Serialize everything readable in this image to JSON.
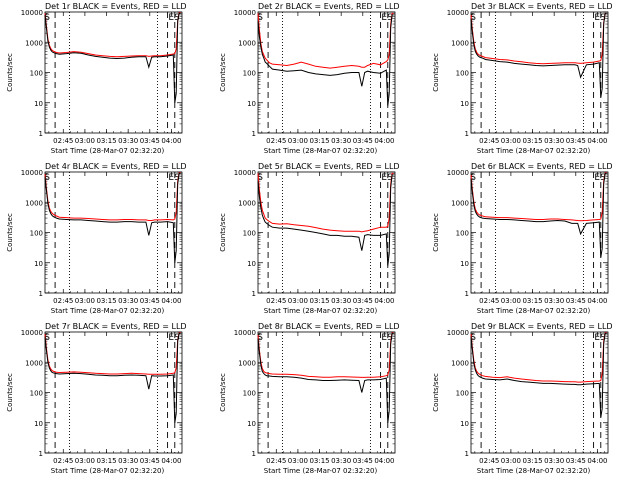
{
  "chart_data": {
    "type": "line",
    "yscale": "log",
    "ylim": [
      1,
      10000
    ],
    "xlim": [
      0,
      95
    ],
    "xtick_labels": [
      "02:45",
      "03:00",
      "03:15",
      "03:30",
      "03:45",
      "04:00"
    ],
    "xtick_minutes": [
      12.67,
      27.67,
      42.67,
      57.67,
      72.67,
      87.67
    ],
    "ytick_labels": [
      "1",
      "10",
      "100",
      "1000",
      "10000"
    ],
    "ytick_values": [
      1,
      10,
      100,
      1000,
      10000
    ],
    "ylabel": "Counts/sec",
    "xlabel": "Start Time (28-Mar-07 02:32:20)",
    "markers": [
      {
        "label": "S",
        "minute": 1.5
      },
      {
        "label": "E",
        "minute": 87.5
      },
      {
        "label": "S",
        "minute": 91.5
      }
    ],
    "dashed_lines_min": [
      7,
      85,
      90
    ],
    "dotted_lines_min": [
      17,
      78
    ],
    "legend_colors": {
      "events": "#000000",
      "lld": "#ff0000"
    },
    "sample_minutes": [
      0,
      1,
      2,
      3,
      4,
      5,
      6,
      8,
      10,
      15,
      20,
      25,
      30,
      35,
      40,
      45,
      50,
      55,
      60,
      65,
      70,
      72,
      74,
      76,
      80,
      85,
      89,
      90,
      91,
      92,
      93,
      94
    ],
    "panels": [
      {
        "title": "Det 1r BLACK = Events, RED = LLD",
        "series": [
          {
            "name": "Events",
            "color": "#000000",
            "values": [
              8000,
              3000,
              1100,
              700,
              550,
              480,
              450,
              420,
              400,
              420,
              450,
              430,
              380,
              340,
              320,
              300,
              290,
              300,
              320,
              330,
              330,
              150,
              320,
              330,
              330,
              350,
              380,
              10,
              20,
              5000,
              9000,
              9000
            ]
          },
          {
            "name": "LLD",
            "color": "#ff0000",
            "values": [
              9000,
              3500,
              1300,
              800,
              620,
              540,
              500,
              460,
              440,
              460,
              490,
              470,
              420,
              380,
              360,
              340,
              330,
              340,
              350,
              360,
              360,
              340,
              350,
              360,
              360,
              380,
              410,
              420,
              600,
              5000,
              9500,
              9500
            ]
          }
        ]
      },
      {
        "title": "Det 2r BLACK = Events, RED = LLD",
        "series": [
          {
            "name": "Events",
            "color": "#000000",
            "values": [
              5000,
              1500,
              700,
              400,
              300,
              220,
              200,
              160,
              130,
              120,
              110,
              115,
              120,
              100,
              90,
              85,
              80,
              85,
              95,
              100,
              100,
              35,
              100,
              110,
              100,
              95,
              120,
              8,
              20,
              3000,
              8000,
              8000
            ]
          },
          {
            "name": "LLD",
            "color": "#ff0000",
            "values": [
              9000,
              2500,
              900,
              500,
              380,
              300,
              260,
              210,
              190,
              180,
              170,
              190,
              220,
              190,
              160,
              150,
              140,
              150,
              160,
              170,
              160,
              150,
              150,
              170,
              200,
              180,
              230,
              260,
              400,
              4000,
              9000,
              9000
            ]
          }
        ]
      },
      {
        "title": "Det 3r BLACK = Events, RED = LLD",
        "series": [
          {
            "name": "Events",
            "color": "#000000",
            "values": [
              6000,
              2000,
              800,
              500,
              400,
              350,
              320,
              300,
              270,
              250,
              230,
              220,
              200,
              190,
              180,
              170,
              165,
              170,
              175,
              180,
              180,
              180,
              170,
              70,
              180,
              190,
              210,
              15,
              30,
              4000,
              9000,
              9000
            ]
          },
          {
            "name": "LLD",
            "color": "#ff0000",
            "values": [
              8000,
              2500,
              1000,
              600,
              460,
              400,
              370,
              340,
              310,
              290,
              270,
              260,
              240,
              225,
              210,
              200,
              195,
              200,
              205,
              210,
              210,
              210,
              205,
              200,
              210,
              220,
              240,
              250,
              400,
              4500,
              9000,
              9000
            ]
          }
        ]
      },
      {
        "title": "Det 4r BLACK = Events, RED = LLD",
        "series": [
          {
            "name": "Events",
            "color": "#000000",
            "values": [
              7000,
              2500,
              900,
              550,
              420,
              360,
              330,
              300,
              280,
              270,
              260,
              260,
              250,
              240,
              230,
              220,
              220,
              230,
              230,
              220,
              220,
              80,
              210,
              220,
              220,
              230,
              210,
              10,
              25,
              4000,
              9000,
              9000
            ]
          },
          {
            "name": "LLD",
            "color": "#ff0000",
            "values": [
              8500,
              3000,
              1100,
              650,
              500,
              430,
              390,
              350,
              320,
              310,
              300,
              300,
              290,
              280,
              270,
              260,
              260,
              270,
              270,
              260,
              260,
              250,
              250,
              260,
              260,
              270,
              260,
              280,
              450,
              5000,
              9500,
              9500
            ]
          }
        ]
      },
      {
        "title": "Det 5r BLACK = Events, RED = LLD",
        "series": [
          {
            "name": "Events",
            "color": "#000000",
            "values": [
              5000,
              1500,
              650,
              380,
              280,
              220,
              200,
              170,
              150,
              140,
              140,
              130,
              120,
              110,
              100,
              90,
              80,
              80,
              75,
              75,
              70,
              25,
              80,
              85,
              80,
              80,
              90,
              8,
              20,
              3000,
              8000,
              8000
            ]
          },
          {
            "name": "LLD",
            "color": "#ff0000",
            "values": [
              9000,
              2500,
              1000,
              550,
              400,
              300,
              270,
              230,
              200,
              190,
              195,
              180,
              170,
              160,
              145,
              130,
              120,
              115,
              110,
              110,
              110,
              105,
              110,
              115,
              130,
              150,
              150,
              160,
              300,
              4000,
              9000,
              9000
            ]
          }
        ]
      },
      {
        "title": "Det 6r BLACK = Events, RED = LLD",
        "series": [
          {
            "name": "Events",
            "color": "#000000",
            "values": [
              6000,
              2000,
              800,
              500,
              400,
              350,
              320,
              300,
              290,
              280,
              270,
              270,
              260,
              250,
              240,
              230,
              230,
              240,
              250,
              240,
              200,
              200,
              200,
              90,
              200,
              210,
              220,
              15,
              30,
              4000,
              9000,
              9000
            ]
          },
          {
            "name": "LLD",
            "color": "#ff0000",
            "values": [
              8000,
              2500,
              1000,
              600,
              470,
              410,
              380,
              350,
              330,
              320,
              310,
              310,
              300,
              290,
              280,
              270,
              270,
              280,
              280,
              270,
              260,
              255,
              250,
              245,
              250,
              260,
              270,
              280,
              450,
              5000,
              9500,
              9500
            ]
          }
        ]
      },
      {
        "title": "Det 7r BLACK = Events, RED = LLD",
        "series": [
          {
            "name": "Events",
            "color": "#000000",
            "values": [
              7000,
              2500,
              1000,
              650,
              520,
              460,
              440,
              420,
              410,
              420,
              430,
              420,
              400,
              380,
              370,
              360,
              360,
              370,
              380,
              370,
              360,
              130,
              360,
              350,
              350,
              360,
              380,
              10,
              20,
              5000,
              9000,
              9000
            ]
          },
          {
            "name": "LLD",
            "color": "#ff0000",
            "values": [
              8500,
              3000,
              1200,
              750,
              600,
              530,
              500,
              470,
              460,
              470,
              480,
              470,
              450,
              430,
              420,
              410,
              410,
              420,
              430,
              420,
              410,
              400,
              400,
              400,
              400,
              410,
              430,
              450,
              650,
              5500,
              9500,
              9500
            ]
          }
        ]
      },
      {
        "title": "Det 8r BLACK = Events, RED = LLD",
        "series": [
          {
            "name": "Events",
            "color": "#000000",
            "values": [
              6000,
              2000,
              800,
              500,
              420,
              380,
              360,
              350,
              340,
              330,
              330,
              320,
              300,
              270,
              260,
              250,
              250,
              255,
              260,
              255,
              250,
              100,
              250,
              260,
              260,
              270,
              300,
              10,
              25,
              4000,
              9000,
              9000
            ]
          },
          {
            "name": "LLD",
            "color": "#ff0000",
            "values": [
              8000,
              2500,
              1000,
              620,
              500,
              460,
              440,
              420,
              410,
              400,
              400,
              390,
              370,
              340,
              330,
              320,
              320,
              330,
              330,
              325,
              320,
              315,
              315,
              320,
              320,
              330,
              360,
              380,
              550,
              5000,
              9500,
              9500
            ]
          }
        ]
      },
      {
        "title": "Det 9r BLACK = Events, RED = LLD",
        "series": [
          {
            "name": "Events",
            "color": "#000000",
            "values": [
              7000,
              2500,
              900,
              550,
              420,
              360,
              330,
              300,
              280,
              270,
              260,
              280,
              250,
              230,
              220,
              210,
              200,
              200,
              195,
              190,
              185,
              185,
              180,
              180,
              190,
              195,
              200,
              15,
              30,
              4000,
              9000,
              9000
            ]
          },
          {
            "name": "LLD",
            "color": "#ff0000",
            "values": [
              8500,
              3000,
              1100,
              650,
              500,
              430,
              400,
              360,
              340,
              320,
              310,
              330,
              300,
              280,
              265,
              250,
              240,
              240,
              235,
              230,
              225,
              225,
              220,
              220,
              230,
              235,
              240,
              250,
              420,
              5000,
              9500,
              9500
            ]
          }
        ]
      }
    ]
  }
}
